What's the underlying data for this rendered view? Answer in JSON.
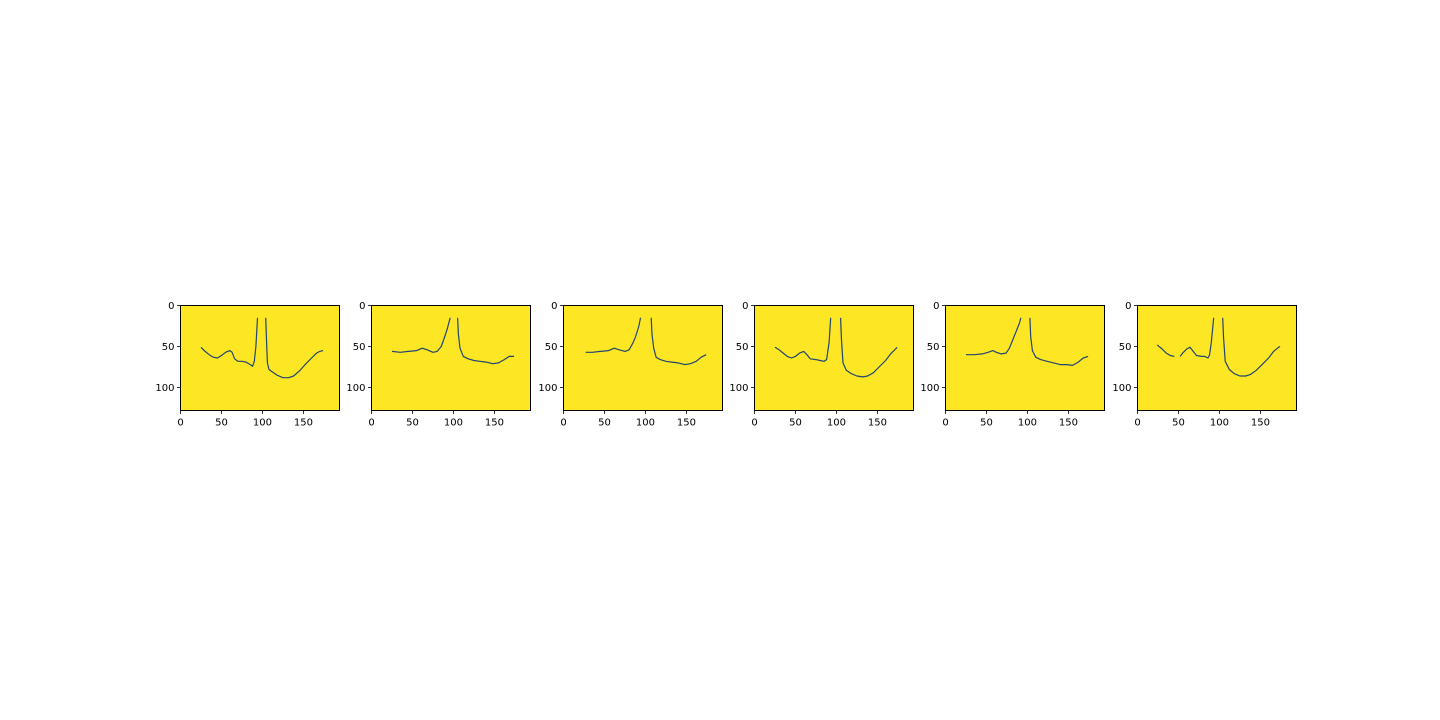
{
  "figure": {
    "background": "#ffffff"
  },
  "chart_data": [
    {
      "type": "line",
      "image_background": "#fde725",
      "line_color": "#21456e",
      "xlim": [
        0,
        194
      ],
      "ylim": [
        128,
        0
      ],
      "xticks": [
        0,
        50,
        100,
        150
      ],
      "yticks": [
        0,
        50,
        100
      ],
      "xtick_labels": [
        "0",
        "50",
        "100",
        "150"
      ],
      "ytick_labels": [
        "0",
        "50",
        "100"
      ],
      "series": [
        {
          "points": [
            [
              25,
              51
            ],
            [
              30,
              56
            ],
            [
              35,
              60
            ],
            [
              40,
              63
            ],
            [
              45,
              64
            ],
            [
              50,
              61
            ],
            [
              55,
              57
            ],
            [
              60,
              55
            ],
            [
              63,
              57
            ],
            [
              66,
              65
            ],
            [
              70,
              68
            ],
            [
              75,
              68
            ],
            [
              80,
              69
            ],
            [
              85,
              72
            ],
            [
              88,
              74
            ],
            [
              90,
              68
            ],
            [
              92,
              50
            ],
            [
              94,
              15
            ]
          ]
        },
        {
          "points": [
            [
              104,
              15
            ],
            [
              105,
              45
            ],
            [
              106,
              70
            ],
            [
              108,
              78
            ],
            [
              112,
              81
            ],
            [
              118,
              85
            ],
            [
              125,
              88
            ],
            [
              132,
              88
            ],
            [
              138,
              86
            ],
            [
              145,
              80
            ],
            [
              152,
              72
            ],
            [
              160,
              64
            ],
            [
              166,
              58
            ],
            [
              170,
              56
            ],
            [
              174,
              55
            ]
          ]
        }
      ]
    },
    {
      "type": "line",
      "image_background": "#fde725",
      "line_color": "#21456e",
      "xlim": [
        0,
        194
      ],
      "ylim": [
        128,
        0
      ],
      "xticks": [
        0,
        50,
        100,
        150
      ],
      "yticks": [
        0,
        50,
        100
      ],
      "xtick_labels": [
        "0",
        "50",
        "100",
        "150"
      ],
      "ytick_labels": [
        "0",
        "50",
        "100"
      ],
      "series": [
        {
          "points": [
            [
              25,
              56
            ],
            [
              35,
              57
            ],
            [
              45,
              56
            ],
            [
              55,
              55
            ],
            [
              62,
              52
            ],
            [
              68,
              54
            ],
            [
              75,
              57
            ],
            [
              80,
              56
            ],
            [
              85,
              50
            ],
            [
              88,
              42
            ],
            [
              92,
              30
            ],
            [
              96,
              15
            ]
          ]
        },
        {
          "points": [
            [
              105,
              15
            ],
            [
              106,
              35
            ],
            [
              108,
              52
            ],
            [
              112,
              62
            ],
            [
              118,
              65
            ],
            [
              125,
              67
            ],
            [
              132,
              68
            ],
            [
              140,
              69
            ],
            [
              148,
              71
            ],
            [
              155,
              70
            ],
            [
              162,
              66
            ],
            [
              168,
              62
            ],
            [
              174,
              62
            ]
          ]
        }
      ]
    },
    {
      "type": "line",
      "image_background": "#fde725",
      "line_color": "#21456e",
      "xlim": [
        0,
        194
      ],
      "ylim": [
        128,
        0
      ],
      "xticks": [
        0,
        50,
        100,
        150
      ],
      "yticks": [
        0,
        50,
        100
      ],
      "xtick_labels": [
        "0",
        "50",
        "100",
        "150"
      ],
      "ytick_labels": [
        "0",
        "50",
        "100"
      ],
      "series": [
        {
          "points": [
            [
              27,
              57
            ],
            [
              35,
              57
            ],
            [
              45,
              56
            ],
            [
              55,
              55
            ],
            [
              62,
              52
            ],
            [
              68,
              54
            ],
            [
              75,
              56
            ],
            [
              80,
              54
            ],
            [
              85,
              45
            ],
            [
              88,
              38
            ],
            [
              92,
              25
            ],
            [
              94,
              15
            ]
          ]
        },
        {
          "points": [
            [
              107,
              15
            ],
            [
              108,
              35
            ],
            [
              110,
              52
            ],
            [
              113,
              63
            ],
            [
              118,
              66
            ],
            [
              125,
              68
            ],
            [
              132,
              69
            ],
            [
              140,
              70
            ],
            [
              148,
              72
            ],
            [
              155,
              71
            ],
            [
              162,
              68
            ],
            [
              168,
              63
            ],
            [
              174,
              60
            ]
          ]
        }
      ]
    },
    {
      "type": "line",
      "image_background": "#fde725",
      "line_color": "#21456e",
      "xlim": [
        0,
        194
      ],
      "ylim": [
        128,
        0
      ],
      "xticks": [
        0,
        50,
        100,
        150
      ],
      "yticks": [
        0,
        50,
        100
      ],
      "xtick_labels": [
        "0",
        "50",
        "100",
        "150"
      ],
      "ytick_labels": [
        "0",
        "50",
        "100"
      ],
      "series": [
        {
          "points": [
            [
              25,
              51
            ],
            [
              30,
              54
            ],
            [
              35,
              58
            ],
            [
              40,
              62
            ],
            [
              45,
              64
            ],
            [
              50,
              62
            ],
            [
              55,
              58
            ],
            [
              60,
              56
            ],
            [
              64,
              60
            ],
            [
              68,
              65
            ],
            [
              75,
              66
            ],
            [
              80,
              67
            ],
            [
              85,
              68
            ],
            [
              88,
              66
            ],
            [
              91,
              45
            ],
            [
              93,
              15
            ]
          ]
        },
        {
          "points": [
            [
              105,
              15
            ],
            [
              106,
              40
            ],
            [
              108,
              70
            ],
            [
              112,
              79
            ],
            [
              118,
              83
            ],
            [
              125,
              86
            ],
            [
              132,
              87
            ],
            [
              138,
              86
            ],
            [
              145,
              82
            ],
            [
              152,
              75
            ],
            [
              160,
              67
            ],
            [
              166,
              59
            ],
            [
              172,
              53
            ],
            [
              174,
              51
            ]
          ]
        }
      ]
    },
    {
      "type": "line",
      "image_background": "#fde725",
      "line_color": "#21456e",
      "xlim": [
        0,
        194
      ],
      "ylim": [
        128,
        0
      ],
      "xticks": [
        0,
        50,
        100,
        150
      ],
      "yticks": [
        0,
        50,
        100
      ],
      "xtick_labels": [
        "0",
        "50",
        "100",
        "150"
      ],
      "ytick_labels": [
        "0",
        "50",
        "100"
      ],
      "series": [
        {
          "points": [
            [
              25,
              60
            ],
            [
              35,
              60
            ],
            [
              45,
              59
            ],
            [
              52,
              57
            ],
            [
              58,
              55
            ],
            [
              62,
              57
            ],
            [
              68,
              59
            ],
            [
              74,
              58
            ],
            [
              78,
              52
            ],
            [
              82,
              42
            ],
            [
              86,
              32
            ],
            [
              90,
              22
            ],
            [
              92,
              15
            ]
          ]
        },
        {
          "points": [
            [
              103,
              15
            ],
            [
              104,
              38
            ],
            [
              106,
              55
            ],
            [
              110,
              63
            ],
            [
              116,
              66
            ],
            [
              124,
              68
            ],
            [
              132,
              70
            ],
            [
              140,
              72
            ],
            [
              148,
              72
            ],
            [
              155,
              73
            ],
            [
              162,
              69
            ],
            [
              168,
              64
            ],
            [
              174,
              62
            ]
          ]
        }
      ]
    },
    {
      "type": "line",
      "image_background": "#fde725",
      "line_color": "#21456e",
      "xlim": [
        0,
        194
      ],
      "ylim": [
        128,
        0
      ],
      "xticks": [
        0,
        50,
        100,
        150
      ],
      "yticks": [
        0,
        50,
        100
      ],
      "xtick_labels": [
        "0",
        "50",
        "100",
        "150"
      ],
      "ytick_labels": [
        "0",
        "50",
        "100"
      ],
      "series": [
        {
          "points": [
            [
              24,
              48
            ],
            [
              30,
              53
            ],
            [
              35,
              58
            ],
            [
              40,
              61
            ],
            [
              45,
              62
            ]
          ]
        },
        {
          "points": [
            [
              52,
              62
            ],
            [
              56,
              57
            ],
            [
              60,
              53
            ],
            [
              64,
              51
            ],
            [
              68,
              56
            ],
            [
              72,
              61
            ],
            [
              78,
              62
            ],
            [
              82,
              62
            ],
            [
              86,
              64
            ],
            [
              88,
              60
            ],
            [
              90,
              45
            ],
            [
              93,
              15
            ]
          ]
        },
        {
          "points": [
            [
              104,
              15
            ],
            [
              105,
              40
            ],
            [
              107,
              68
            ],
            [
              112,
              78
            ],
            [
              118,
              83
            ],
            [
              125,
              86
            ],
            [
              132,
              86
            ],
            [
              138,
              84
            ],
            [
              145,
              79
            ],
            [
              152,
              72
            ],
            [
              160,
              64
            ],
            [
              166,
              56
            ],
            [
              172,
              51
            ],
            [
              174,
              50
            ]
          ]
        }
      ]
    }
  ]
}
